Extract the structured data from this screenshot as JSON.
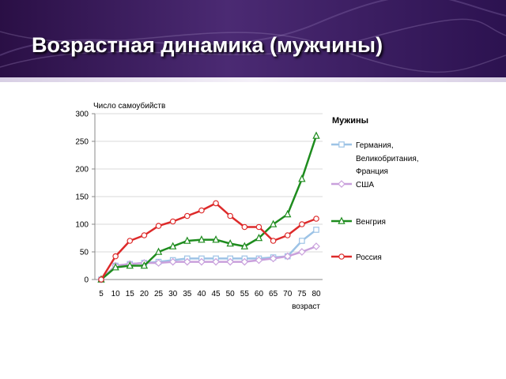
{
  "slide": {
    "title": "Возрастная динамика (мужчины)"
  },
  "chart_data": {
    "type": "line",
    "ylabel": "Число самоубийств",
    "xlabel": "возраст",
    "legend_title": "Мужины",
    "legend_position": "right",
    "ylim": [
      0,
      300
    ],
    "yticks": [
      0,
      50,
      100,
      150,
      200,
      250,
      300
    ],
    "grid": true,
    "x": [
      5,
      10,
      15,
      20,
      25,
      30,
      35,
      40,
      45,
      50,
      55,
      60,
      65,
      70,
      75,
      80
    ],
    "series": [
      {
        "name_lines": [
          "Германия,",
          "Великобритания,",
          "Франция"
        ],
        "color": "#9dc3e6",
        "marker": "square",
        "values": [
          0,
          25,
          28,
          30,
          32,
          35,
          38,
          38,
          38,
          38,
          38,
          38,
          40,
          42,
          70,
          90
        ]
      },
      {
        "name_lines": [
          "США"
        ],
        "color": "#c9a0dc",
        "marker": "diamond",
        "values": [
          0,
          25,
          28,
          30,
          30,
          32,
          32,
          32,
          32,
          32,
          32,
          35,
          38,
          42,
          50,
          60
        ]
      },
      {
        "name_lines": [
          "Венгрия"
        ],
        "color": "#1e8c1e",
        "marker": "triangle",
        "values": [
          0,
          22,
          25,
          25,
          50,
          60,
          70,
          72,
          72,
          65,
          60,
          75,
          100,
          118,
          182,
          260
        ]
      },
      {
        "name_lines": [
          "Россия"
        ],
        "color": "#dd2a2a",
        "marker": "circle",
        "values": [
          0,
          42,
          70,
          80,
          97,
          105,
          115,
          125,
          138,
          115,
          95,
          95,
          70,
          80,
          100,
          110
        ]
      }
    ]
  }
}
